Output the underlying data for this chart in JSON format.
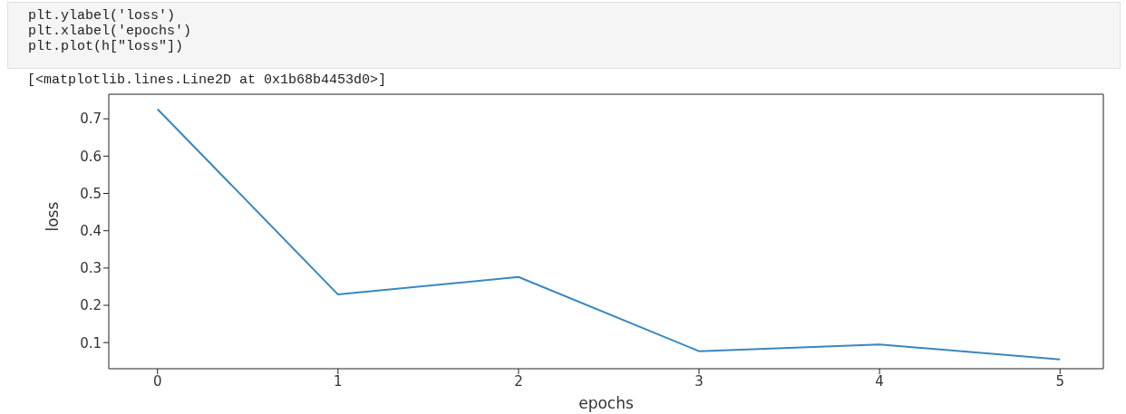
{
  "chart_data": {
    "type": "line",
    "xlabel": "epochs",
    "ylabel": "loss",
    "annotations": [
      "plt.ylabel('loss')",
      "plt.xlabel('epochs')",
      "plt.plot(h[\"loss\"])",
      "[<matplotlib.lines.Line2D at 0x1b68b4453d0>]"
    ],
    "x": [
      0,
      1,
      2,
      3,
      4,
      5
    ],
    "series": [
      {
        "color": "#3a87c0",
        "values": [
          0.726,
          0.229,
          0.276,
          0.077,
          0.095,
          0.055
        ]
      }
    ],
    "xlim": [
      -0.27,
      5.24
    ],
    "xticks": [
      0,
      1,
      2,
      3,
      4,
      5
    ],
    "ylim": [
      0.03,
      0.766
    ],
    "yticks": [
      0.1,
      0.2,
      0.3,
      0.4,
      0.5,
      0.6,
      0.7
    ],
    "grid": false,
    "legend": false,
    "marker": "none",
    "line_style": "solid"
  }
}
